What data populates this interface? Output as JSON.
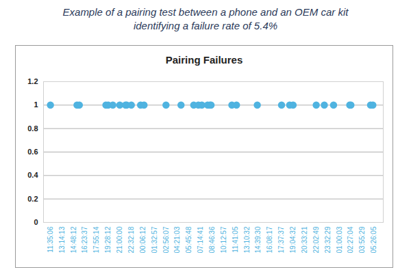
{
  "chart_data": {
    "type": "scatter",
    "title": "Pairing Failures",
    "subtitle": "Example of a pairing test between a phone and an OEM car kit identifying a failure rate of 5.4%",
    "x": [
      0,
      2.3,
      2.5,
      4.8,
      5.0,
      5.4,
      6.0,
      6.5,
      6.6,
      7.0,
      7.8,
      8.1,
      10.0,
      11.3,
      12.4,
      12.8,
      13.1,
      13.6,
      13.8,
      13.9,
      15.7,
      16.1,
      17.9,
      20.0,
      20.7,
      21.0,
      23.0,
      23.7,
      24.5,
      25.9,
      26.0,
      27.7,
      27.9
    ],
    "values": [
      1,
      1,
      1,
      1,
      1,
      1,
      1,
      1,
      1,
      1,
      1,
      1,
      1,
      1,
      1,
      1,
      1,
      1,
      1,
      1,
      1,
      1,
      1,
      1,
      1,
      1,
      1,
      1,
      1,
      1,
      1,
      1,
      1
    ],
    "color": "#4fb3e0",
    "marker": "circle",
    "grid": true,
    "xlim": [
      -0.6,
      28.8
    ],
    "xticks": [
      {
        "value": 0,
        "label": "11:35:06"
      },
      {
        "value": 1,
        "label": "13:14:13"
      },
      {
        "value": 2,
        "label": "14:48:12"
      },
      {
        "value": 3,
        "label": "16:23:37"
      },
      {
        "value": 4,
        "label": "17:55:14"
      },
      {
        "value": 5,
        "label": "19:28:12"
      },
      {
        "value": 6,
        "label": "21:00:00"
      },
      {
        "value": 7,
        "label": "22:32:18"
      },
      {
        "value": 8,
        "label": "00:06:12"
      },
      {
        "value": 9,
        "label": "01:32:57"
      },
      {
        "value": 10,
        "label": "02:56:07"
      },
      {
        "value": 11,
        "label": "04:21:03"
      },
      {
        "value": 12,
        "label": "05:45:48"
      },
      {
        "value": 13,
        "label": "07:14:41"
      },
      {
        "value": 14,
        "label": "08:46:36"
      },
      {
        "value": 15,
        "label": "10:12:57"
      },
      {
        "value": 16,
        "label": "11:41:05"
      },
      {
        "value": 17,
        "label": "13:10:32"
      },
      {
        "value": 18,
        "label": "14:39:30"
      },
      {
        "value": 19,
        "label": "16:08:17"
      },
      {
        "value": 20,
        "label": "17:37:37"
      },
      {
        "value": 21,
        "label": "19:04:32"
      },
      {
        "value": 22,
        "label": "20:33:21"
      },
      {
        "value": 23,
        "label": "22:02:49"
      },
      {
        "value": 24,
        "label": "23:32:29"
      },
      {
        "value": 25,
        "label": "01:00:03"
      },
      {
        "value": 26,
        "label": "02:27:04"
      },
      {
        "value": 27,
        "label": "03:55:29"
      },
      {
        "value": 28,
        "label": "05:26:05"
      }
    ],
    "ylim": [
      0,
      1.2
    ],
    "yticks": [
      0,
      0.2,
      0.4,
      0.6,
      0.8,
      1,
      1.2
    ]
  }
}
